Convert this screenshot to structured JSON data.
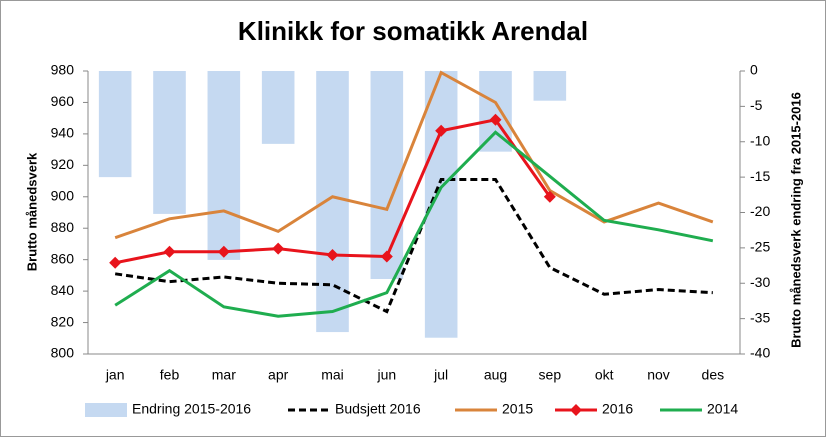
{
  "chart_data": {
    "type": "combo",
    "title": "Klinikk for somatikk Arendal",
    "y_label": "Brutto månedsverk",
    "y2_label": "Brutto månedsverk endring fra 2015-2016",
    "categories": [
      "jan",
      "feb",
      "mar",
      "apr",
      "mai",
      "jun",
      "jul",
      "aug",
      "sep",
      "okt",
      "nov",
      "des"
    ],
    "ylim": [
      800,
      980
    ],
    "yticks": [
      800,
      820,
      840,
      860,
      880,
      900,
      920,
      940,
      960,
      980
    ],
    "y2lim": [
      -40,
      0
    ],
    "y2ticks": [
      -40,
      -35,
      -30,
      -25,
      -20,
      -15,
      -10,
      -5,
      0
    ],
    "legend": "bottom",
    "series": [
      {
        "name": "Endring 2015-2016",
        "type": "bar",
        "axis": "y2",
        "color": "#c5d9f1",
        "values": [
          -15,
          -20.2,
          -26.7,
          -10.3,
          -36.9,
          -29.4,
          -37.7,
          -11.4,
          -4.2,
          null,
          null,
          null
        ]
      },
      {
        "name": "Budsjett 2016",
        "type": "line",
        "dash": true,
        "color": "#000000",
        "values": [
          851,
          846,
          849,
          845,
          844,
          827,
          911,
          911,
          855,
          838,
          841,
          839
        ]
      },
      {
        "name": "2015",
        "type": "line",
        "color": "#d9843b",
        "values": [
          874,
          886,
          891,
          878,
          900,
          892,
          979,
          960,
          904,
          884,
          896,
          884
        ]
      },
      {
        "name": "2016",
        "type": "line",
        "marker": "diamond",
        "color": "#e8141c",
        "values": [
          858,
          865,
          865,
          867,
          863,
          862,
          942,
          949,
          900,
          null,
          null,
          null
        ]
      },
      {
        "name": "2014",
        "type": "line",
        "color": "#1fad4f",
        "values": [
          831,
          853,
          830,
          824,
          827,
          839,
          906,
          941,
          913,
          885,
          879,
          872
        ]
      }
    ]
  }
}
